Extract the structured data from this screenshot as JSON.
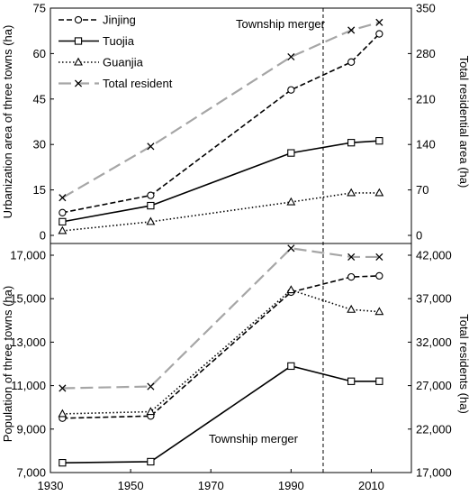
{
  "chart_data": [
    {
      "type": "line",
      "panel": "top",
      "x": [
        1933,
        1955,
        1990,
        2005,
        2012
      ],
      "xlim": [
        1930,
        2020
      ],
      "ylabel": "Urbanization area of three towns (ha)",
      "ylim": [
        0,
        75
      ],
      "yticks": [
        "0",
        "15",
        "30",
        "45",
        "60",
        "75"
      ],
      "y2label": "Total residential area (ha)",
      "y2lim": [
        0,
        350
      ],
      "y2ticks": [
        "0",
        "70",
        "140",
        "210",
        "280",
        "350"
      ],
      "annotation": "Township merger",
      "legend_position": "top-left",
      "merger_year": 1998,
      "series": [
        {
          "name": "Jinjing",
          "axis": "left",
          "values": [
            7.5,
            13.2,
            48,
            57.2,
            66.5
          ],
          "color": "#000000",
          "dash": "6,3",
          "marker": "circle"
        },
        {
          "name": "Tuojia",
          "axis": "left",
          "values": [
            4.5,
            9.8,
            27.2,
            30.6,
            31.2
          ],
          "color": "#000000",
          "dash": "",
          "marker": "square"
        },
        {
          "name": "Guanjia",
          "axis": "left",
          "values": [
            1.5,
            4.5,
            11,
            14,
            14
          ],
          "color": "#000000",
          "dash": "1.5,2.5",
          "marker": "triangle"
        },
        {
          "name": "Total resident",
          "axis": "right",
          "values": [
            58,
            137,
            275,
            316,
            328
          ],
          "color": "#a6a6a6",
          "dash": "14,6",
          "marker": "x"
        }
      ]
    },
    {
      "type": "line",
      "panel": "bottom",
      "x": [
        1933,
        1955,
        1990,
        2005,
        2012
      ],
      "xlim": [
        1930,
        2020
      ],
      "xticks": [
        "1930",
        "1950",
        "1970",
        "1990",
        "2010"
      ],
      "ylabel": "Population of three towns (ha)",
      "ylim": [
        7000,
        17000
      ],
      "yticks": [
        "7,000",
        "9,000",
        "11,000",
        "13,000",
        "15,000",
        "17,000"
      ],
      "y2label": "Total residents (ha)",
      "y2lim": [
        17000,
        42000
      ],
      "y2ticks": [
        "17,000",
        "22,000",
        "27,000",
        "32,000",
        "37,000",
        "42,000"
      ],
      "annotation": "Township merger",
      "merger_year": 1998,
      "series": [
        {
          "name": "Jinjing",
          "axis": "left",
          "values": [
            9500,
            9600,
            15300,
            16000,
            16050
          ],
          "color": "#000000",
          "dash": "6,3",
          "marker": "circle"
        },
        {
          "name": "Tuojia",
          "axis": "left",
          "values": [
            7450,
            7500,
            11900,
            11200,
            11200
          ],
          "color": "#000000",
          "dash": "",
          "marker": "square"
        },
        {
          "name": "Guanjia",
          "axis": "left",
          "values": [
            9700,
            9800,
            15400,
            14500,
            14400
          ],
          "color": "#000000",
          "dash": "1.5,2.5",
          "marker": "triangle"
        },
        {
          "name": "Total resident",
          "axis": "right",
          "values": [
            26700,
            26900,
            42800,
            41800,
            41800
          ],
          "color": "#a6a6a6",
          "dash": "14,6",
          "marker": "x"
        }
      ]
    }
  ]
}
